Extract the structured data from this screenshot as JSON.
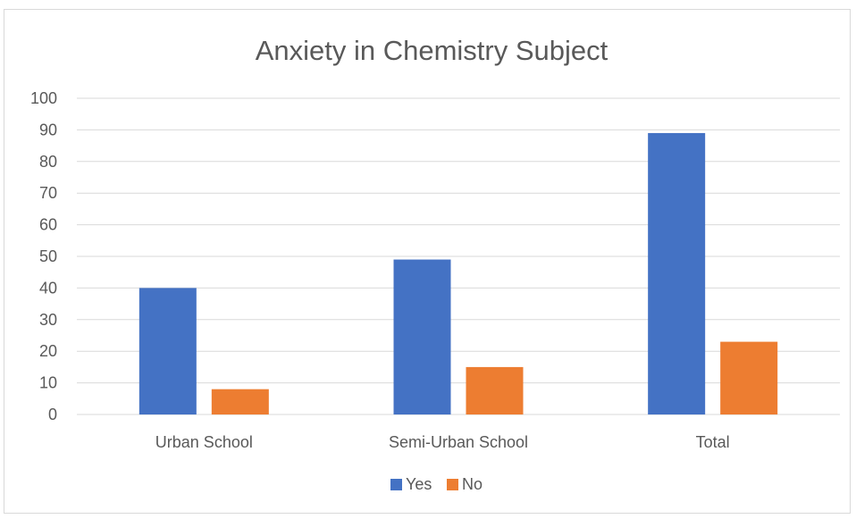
{
  "chart_data": {
    "type": "bar",
    "title": "Anxiety in Chemistry Subject",
    "xlabel": "",
    "ylabel": "",
    "categories": [
      "Urban School",
      "Semi-Urban School",
      "Total"
    ],
    "series": [
      {
        "name": "Yes",
        "values": [
          40,
          49,
          89
        ],
        "color": "#4472C4"
      },
      {
        "name": "No",
        "values": [
          8,
          15,
          23
        ],
        "color": "#ED7D31"
      }
    ],
    "ylim": [
      0,
      100
    ],
    "yticks": [
      0,
      10,
      20,
      30,
      40,
      50,
      60,
      70,
      80,
      90,
      100
    ],
    "grid": true,
    "legend_position": "bottom"
  }
}
